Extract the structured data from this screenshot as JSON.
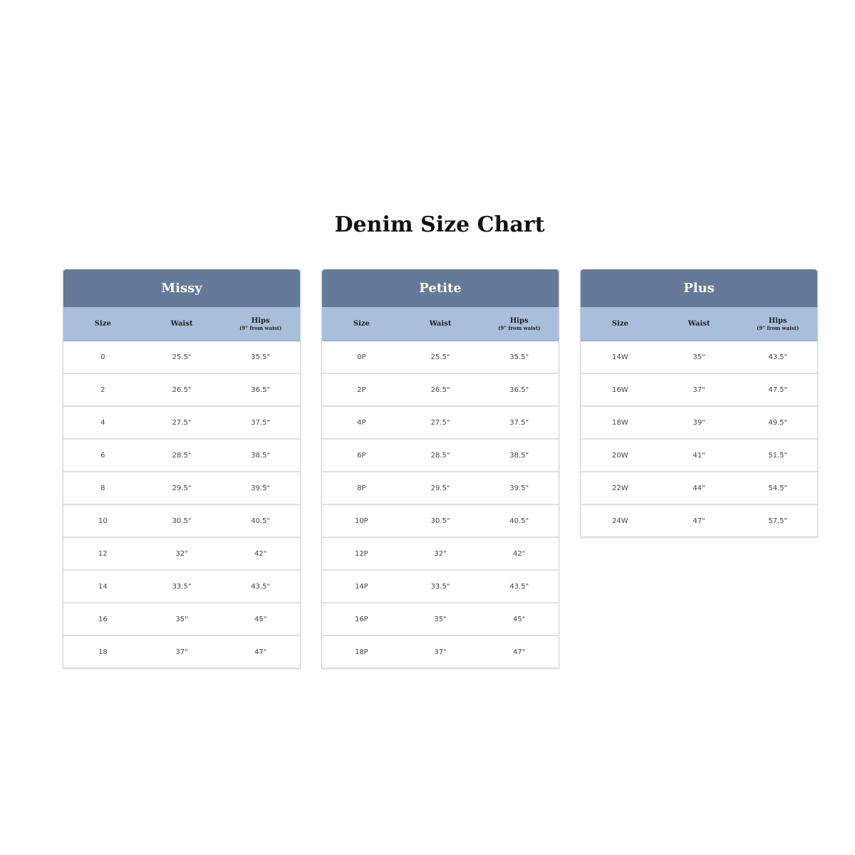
{
  "title": "Denim Size Chart",
  "colors": {
    "header": "#657a98",
    "subheader": "#a8bedb"
  },
  "chart_data": {
    "type": "table",
    "title": "Denim Size Chart",
    "columns": [
      "Size",
      "Waist",
      "Hips",
      "(9\" from waist)"
    ],
    "tables": [
      {
        "name": "Missy",
        "rows": [
          [
            "0",
            "25.5\"",
            "35.5\""
          ],
          [
            "2",
            "26.5\"",
            "36.5\""
          ],
          [
            "4",
            "27.5\"",
            "37.5\""
          ],
          [
            "6",
            "28.5\"",
            "38.5\""
          ],
          [
            "8",
            "29.5\"",
            "39.5\""
          ],
          [
            "10",
            "30.5\"",
            "40.5\""
          ],
          [
            "12",
            "32\"",
            "42\""
          ],
          [
            "14",
            "33.5\"",
            "43.5\""
          ],
          [
            "16",
            "35\"",
            "45\""
          ],
          [
            "18",
            "37\"",
            "47\""
          ]
        ]
      },
      {
        "name": "Petite",
        "rows": [
          [
            "0P",
            "25.5\"",
            "35.5\""
          ],
          [
            "2P",
            "26.5\"",
            "36.5\""
          ],
          [
            "4P",
            "27.5\"",
            "37.5\""
          ],
          [
            "6P",
            "28.5\"",
            "38.5\""
          ],
          [
            "8P",
            "29.5\"",
            "39.5\""
          ],
          [
            "10P",
            "30.5\"",
            "40.5\""
          ],
          [
            "12P",
            "32\"",
            "42\""
          ],
          [
            "14P",
            "33.5\"",
            "43.5\""
          ],
          [
            "16P",
            "35\"",
            "45\""
          ],
          [
            "18P",
            "37\"",
            "47\""
          ]
        ]
      },
      {
        "name": "Plus",
        "rows": [
          [
            "14W",
            "35\"",
            "43.5\""
          ],
          [
            "16W",
            "37\"",
            "47.5\""
          ],
          [
            "18W",
            "39\"",
            "49.5\""
          ],
          [
            "20W",
            "41\"",
            "51.5\""
          ],
          [
            "22W",
            "44\"",
            "54.5\""
          ],
          [
            "24W",
            "47\"",
            "57.5\""
          ]
        ]
      }
    ]
  }
}
